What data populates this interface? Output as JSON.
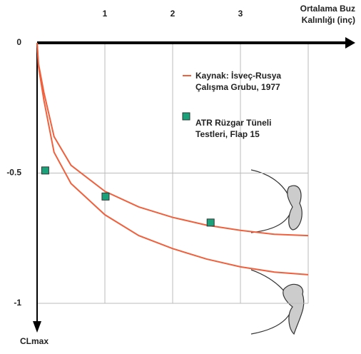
{
  "chart_data": {
    "type": "line",
    "x_label": "Ortalama Buz Kalınlığı (inç)",
    "y_label": "CLmax",
    "xlim": [
      0,
      4
    ],
    "ylim": [
      0,
      -1
    ],
    "xticks": [
      1,
      2,
      3
    ],
    "yticks": [
      0,
      -0.5,
      -1
    ],
    "grid": true,
    "series": [
      {
        "name": "Kaynak: İsveç-Rusya Çalışma Grubu, 1977",
        "kind": "line",
        "color": "#f0603c",
        "curves": [
          {
            "x": [
              0,
              0.02,
              0.1,
              0.25,
              0.5,
              1,
              1.5,
              2,
              2.5,
              3,
              3.5,
              4
            ],
            "values": [
              0,
              -0.08,
              -0.19,
              -0.36,
              -0.47,
              -0.57,
              -0.63,
              -0.67,
              -0.7,
              -0.72,
              -0.735,
              -0.74
            ]
          },
          {
            "x": [
              0,
              0.02,
              0.1,
              0.25,
              0.5,
              1,
              1.5,
              2,
              2.5,
              3,
              3.5,
              4
            ],
            "values": [
              0,
              -0.09,
              -0.22,
              -0.42,
              -0.54,
              -0.66,
              -0.74,
              -0.79,
              -0.83,
              -0.86,
              -0.88,
              -0.89
            ]
          }
        ]
      },
      {
        "name": "ATR Rüzgar Tüneli Testleri, Flap 15",
        "kind": "scatter",
        "color": "#1aa37a",
        "x": [
          0.12,
          1.01,
          2.56
        ],
        "values": [
          -0.49,
          -0.59,
          -0.69
        ]
      }
    ]
  }
}
